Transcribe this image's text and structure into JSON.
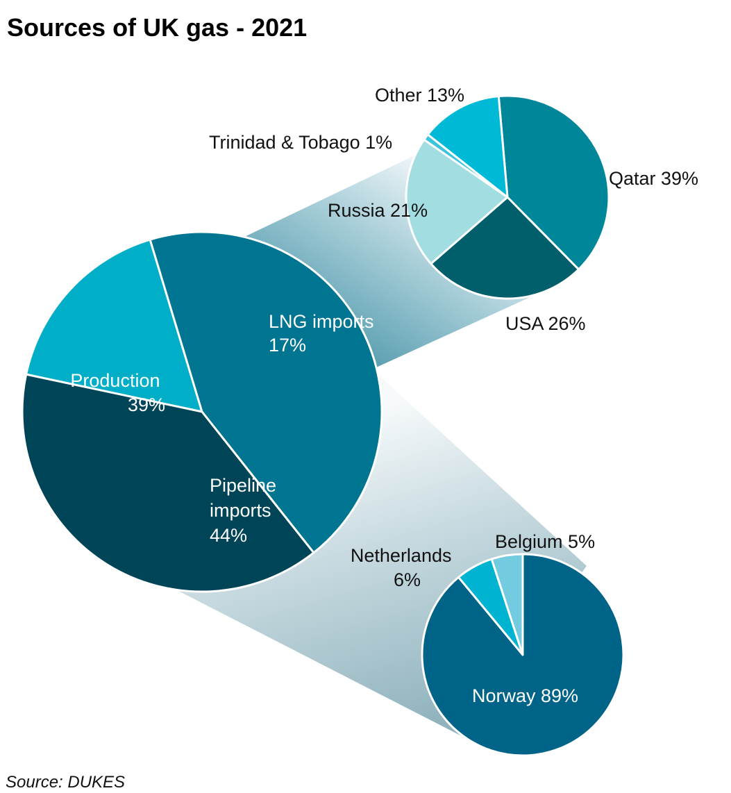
{
  "title": "Sources of UK gas - 2021",
  "source": "Source: DUKES",
  "chart_data": [
    {
      "type": "pie",
      "name": "main",
      "slices": [
        {
          "label_lines": [
            "LNG imports",
            "17%"
          ],
          "value": 17,
          "color": "#00AEC8"
        },
        {
          "label_lines": [
            "Pipeline",
            "imports",
            "44%"
          ],
          "value": 44,
          "color": "#007591"
        },
        {
          "label_lines": [
            "Production",
            "39%"
          ],
          "value": 39,
          "color": "#004557"
        }
      ]
    },
    {
      "type": "pie",
      "name": "lng",
      "slices": [
        {
          "label_lines": [
            "Qatar 39%"
          ],
          "value": 39,
          "color": "#008699"
        },
        {
          "label_lines": [
            "USA 26%"
          ],
          "value": 26,
          "color": "#005F6B"
        },
        {
          "label_lines": [
            "Russia 21%"
          ],
          "value": 21,
          "color": "#A2DDE1"
        },
        {
          "label_lines": [
            "Trinidad & Tobago 1%"
          ],
          "value": 1,
          "color": "#3CC4DC"
        },
        {
          "label_lines": [
            "Other 13%"
          ],
          "value": 13,
          "color": "#00B9D6"
        }
      ]
    },
    {
      "type": "pie",
      "name": "pipeline",
      "slices": [
        {
          "label_lines": [
            "Norway 89%"
          ],
          "value": 89,
          "color": "#006388"
        },
        {
          "label_lines": [
            "Netherlands",
            "6%"
          ],
          "value": 6,
          "color": "#00B3D0"
        },
        {
          "label_lines": [
            "Belgium 5%"
          ],
          "value": 5,
          "color": "#72CBDE"
        }
      ]
    }
  ]
}
